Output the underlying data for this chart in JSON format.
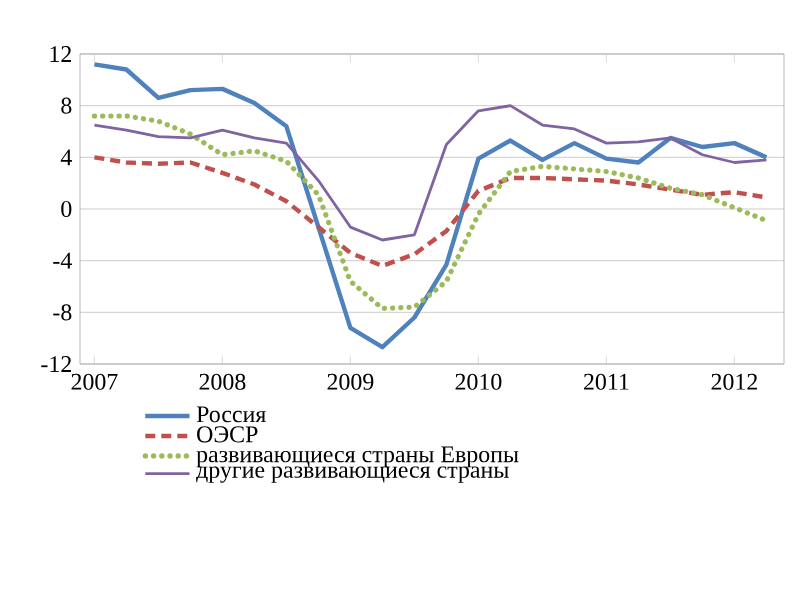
{
  "chart_data": {
    "type": "line",
    "categories": [
      "2007",
      null,
      null,
      null,
      "2008",
      null,
      null,
      null,
      "2009",
      null,
      null,
      null,
      "2010",
      null,
      null,
      null,
      "2011",
      null,
      null,
      null,
      "2012",
      null
    ],
    "ylim": [
      -12,
      12
    ],
    "yticks": [
      -12,
      -8,
      -4,
      0,
      4,
      8,
      12
    ],
    "grid": "y",
    "legend": "bottom",
    "marker": "none",
    "series": [
      {
        "name": "Россия",
        "color": "#4f81bd",
        "line_style": "solid",
        "values": [
          11.2,
          10.8,
          8.6,
          9.2,
          9.3,
          8.2,
          6.4,
          -1.4,
          -9.2,
          -10.7,
          -8.4,
          -4.3,
          3.9,
          5.3,
          3.8,
          5.1,
          3.9,
          3.6,
          5.5,
          4.8,
          5.1,
          4.0
        ]
      },
      {
        "name": "ОЭСР",
        "color": "#c0504d",
        "line_style": "dashed",
        "values": [
          4.0,
          3.6,
          3.5,
          3.6,
          2.8,
          1.9,
          0.6,
          -1.4,
          -3.4,
          -4.4,
          -3.5,
          -1.7,
          1.4,
          2.4,
          2.4,
          2.3,
          2.2,
          1.9,
          1.5,
          1.1,
          1.3,
          0.9
        ]
      },
      {
        "name": "развивающиеся страны Европы",
        "color": "#9bbb59",
        "line_style": "dotted",
        "values": [
          7.2,
          7.2,
          6.8,
          5.8,
          4.2,
          4.5,
          3.7,
          1.1,
          -5.6,
          -7.7,
          -7.6,
          -5.6,
          -0.4,
          2.9,
          3.3,
          3.1,
          2.9,
          2.4,
          1.6,
          1.1,
          0.1,
          -0.9
        ]
      },
      {
        "name": "другие развивающиеся страны",
        "color": "#8064a2",
        "line_style": "solid",
        "values": [
          6.5,
          6.1,
          5.6,
          5.5,
          6.1,
          5.5,
          5.1,
          2.2,
          -1.4,
          -2.4,
          -2.0,
          5.0,
          7.6,
          8.0,
          6.5,
          6.2,
          5.1,
          5.2,
          5.5,
          4.2,
          3.6,
          3.8
        ]
      }
    ]
  }
}
